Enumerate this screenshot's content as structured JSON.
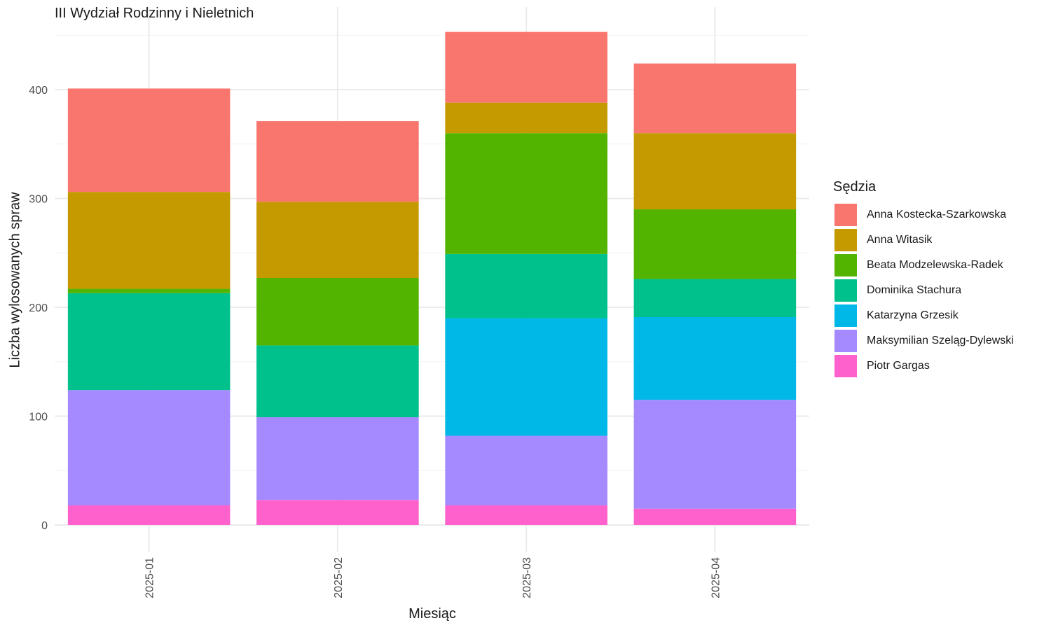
{
  "chart_data": {
    "type": "bar",
    "stacked": true,
    "title": "III Wydział Rodzinny i Nieletnich",
    "xlabel": "Miesiąc",
    "ylabel": "Liczba wylosowanych spraw",
    "ylim": [
      0,
      460
    ],
    "yticks": [
      0,
      100,
      200,
      300,
      400
    ],
    "categories": [
      "2025-01",
      "2025-02",
      "2025-03",
      "2025-04"
    ],
    "legend_title": "Sędzia",
    "legend_position": "right",
    "grid": true,
    "series": [
      {
        "name": "Piotr Gargas",
        "color": "#FF61CC",
        "values": [
          18,
          23,
          18,
          15
        ]
      },
      {
        "name": "Maksymilian Szeląg-Dylewski",
        "color": "#A58AFF",
        "values": [
          106,
          76,
          64,
          100
        ]
      },
      {
        "name": "Katarzyna Grzesik",
        "color": "#00B8E7",
        "values": [
          0,
          0,
          108,
          76
        ]
      },
      {
        "name": "Dominika Stachura",
        "color": "#00C08B",
        "values": [
          89,
          66,
          59,
          35
        ]
      },
      {
        "name": "Beata Modzelewska-Radek",
        "color": "#53B400",
        "values": [
          4,
          62,
          111,
          64
        ]
      },
      {
        "name": "Anna Witasik",
        "color": "#C49A00",
        "values": [
          89,
          70,
          28,
          70
        ]
      },
      {
        "name": "Anna Kostecka-Szarkowska",
        "color": "#F8766D",
        "values": [
          95,
          74,
          65,
          64
        ]
      }
    ]
  }
}
